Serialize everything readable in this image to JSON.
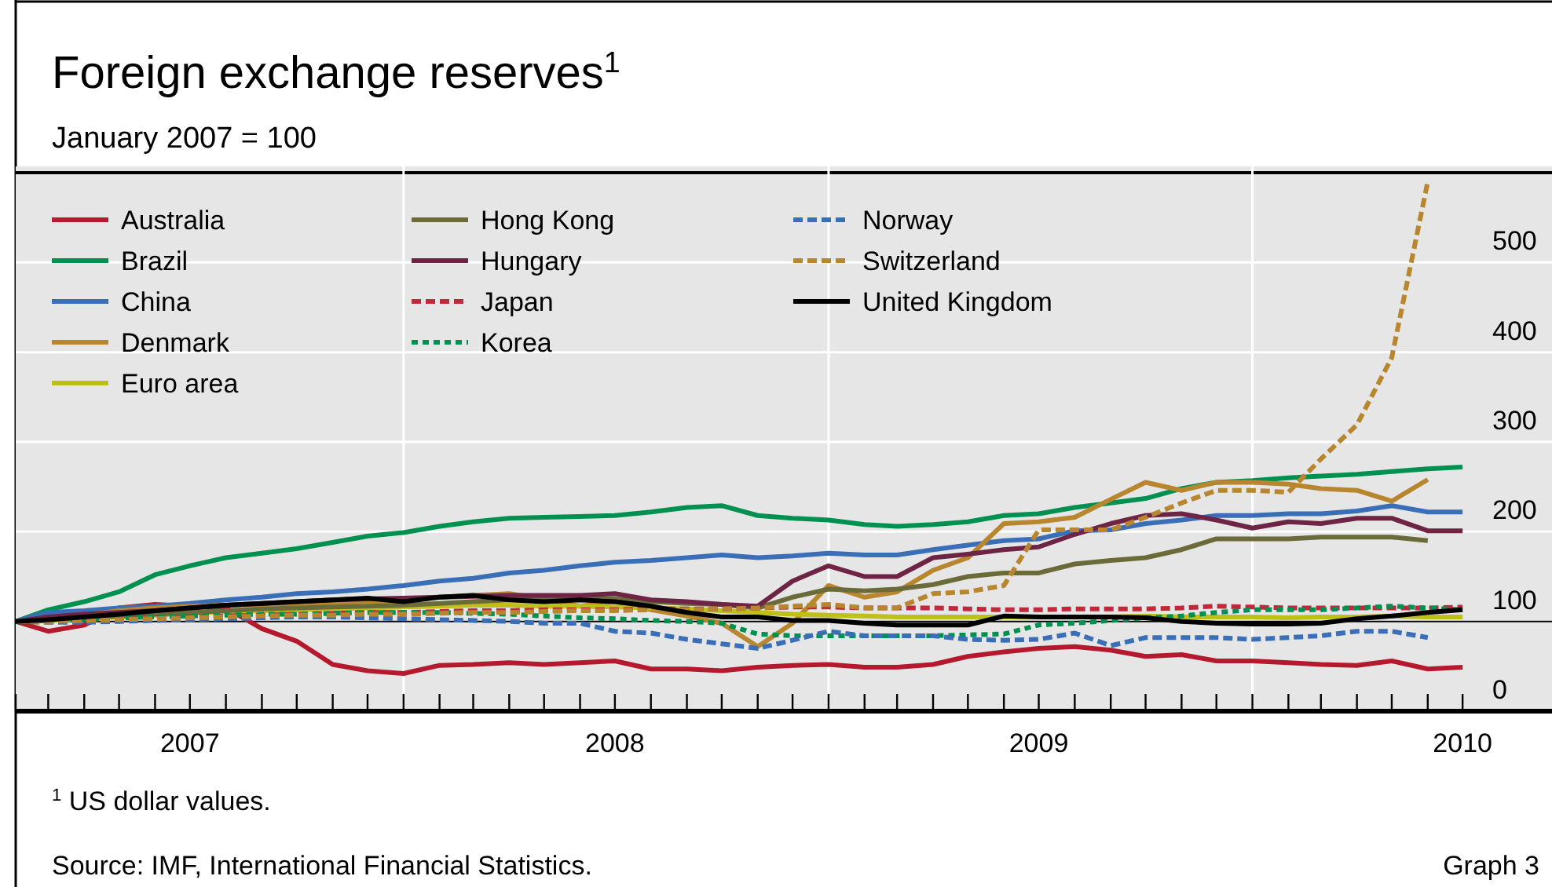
{
  "chart_data": {
    "type": "line",
    "title": "Foreign exchange reserves$^{1}$",
    "subtitle": "January 2007 = 100",
    "x": [
      "2007-01-31",
      "2007-02-28",
      "2007-03-31",
      "2007-04-30",
      "2007-05-31",
      "2007-06-30",
      "2007-07-31",
      "2007-08-31",
      "2007-09-30",
      "2007-10-31",
      "2007-11-30",
      "2007-12-31",
      "2008-01-31",
      "2008-02-29",
      "2008-03-31",
      "2008-04-30",
      "2008-05-31",
      "2008-06-30",
      "2008-07-31",
      "2008-08-31",
      "2008-09-30",
      "2008-10-31",
      "2008-11-30",
      "2008-12-31",
      "2009-01-31",
      "2009-02-28",
      "2009-03-31",
      "2009-04-30",
      "2009-05-31",
      "2009-06-30",
      "2009-07-31",
      "2009-08-31",
      "2009-09-30",
      "2009-10-31",
      "2009-11-30",
      "2009-12-31",
      "2010-01-31",
      "2010-02-28",
      "2010-03-31",
      "2010-04-30",
      "2010-05-31",
      "2010-06-30"
    ],
    "series": [
      {
        "name": "Australia",
        "color": "#b5192e",
        "line_style": "solid",
        "values": [
          100,
          89,
          96,
          115,
          119,
          117,
          115,
          92,
          78,
          52,
          45,
          42,
          51,
          52,
          54,
          52,
          54,
          56,
          47,
          47,
          45,
          49,
          51,
          52,
          49,
          49,
          52,
          61,
          66,
          70,
          72,
          68,
          61,
          63,
          56,
          56,
          54,
          52,
          51,
          56,
          47,
          49
        ]
      },
      {
        "name": "Brazil",
        "color": "#009150",
        "line_style": "solid",
        "values": [
          100,
          113,
          122,
          133,
          152,
          162,
          171,
          176,
          181,
          188,
          195,
          199,
          206,
          211,
          215,
          216,
          217,
          218,
          222,
          227,
          229,
          218,
          215,
          213,
          208,
          206,
          208,
          211,
          218,
          220,
          227,
          232,
          237,
          248,
          255,
          257,
          260,
          262,
          264,
          267,
          270,
          272
        ]
      },
      {
        "name": "China",
        "color": "#3a6fb7",
        "line_style": "solid",
        "values": [
          100,
          110,
          112,
          115,
          117,
          120,
          124,
          127,
          131,
          133,
          136,
          140,
          145,
          148,
          154,
          157,
          162,
          166,
          168,
          171,
          174,
          171,
          173,
          176,
          174,
          174,
          180,
          185,
          190,
          192,
          201,
          202,
          209,
          213,
          218,
          218,
          220,
          220,
          223,
          229,
          222,
          222
        ]
      },
      {
        "name": "Denmark",
        "color": "#b8862e",
        "line_style": "solid",
        "values": [
          100,
          103,
          107,
          112,
          115,
          117,
          118,
          119,
          120,
          121,
          122,
          123,
          127,
          129,
          131,
          125,
          117,
          122,
          113,
          106,
          98,
          72,
          98,
          140,
          127,
          133,
          157,
          171,
          209,
          211,
          216,
          236,
          255,
          246,
          255,
          255,
          253,
          248,
          246,
          234,
          258,
          null
        ]
      },
      {
        "name": "Euro area",
        "color": "#bfbf1a",
        "line_style": "solid",
        "values": [
          100,
          101,
          103,
          105,
          107,
          109,
          111,
          112,
          113,
          114,
          115,
          116,
          117,
          118,
          118,
          117,
          117,
          116,
          115,
          114,
          112,
          110,
          108,
          107,
          106,
          105,
          105,
          105,
          105,
          105,
          105,
          105,
          106,
          105,
          105,
          105,
          104,
          105,
          105,
          106,
          105,
          105
        ]
      },
      {
        "name": "Hong Kong",
        "color": "#6b6b3a",
        "line_style": "solid",
        "values": [
          100,
          102,
          104,
          106,
          108,
          110,
          112,
          114,
          115,
          116,
          117,
          118,
          120,
          122,
          124,
          126,
          127,
          125,
          122,
          120,
          119,
          115,
          127,
          136,
          134,
          136,
          141,
          150,
          154,
          154,
          164,
          168,
          171,
          180,
          192,
          192,
          192,
          194,
          194,
          194,
          190,
          null
        ]
      },
      {
        "name": "Hungary",
        "color": "#6e2445",
        "line_style": "solid",
        "values": [
          100,
          105,
          108,
          110,
          112,
          115,
          118,
          120,
          122,
          124,
          125,
          126,
          127,
          128,
          129,
          129,
          129,
          131,
          124,
          122,
          119,
          117,
          145,
          162,
          150,
          150,
          171,
          175,
          180,
          183,
          197,
          209,
          218,
          220,
          213,
          204,
          211,
          209,
          215,
          215,
          201,
          201
        ]
      },
      {
        "name": "Japan",
        "color": "#c0283c",
        "line_style": "dashed",
        "values": [
          100,
          101,
          102,
          103,
          104,
          105,
          106,
          107,
          108,
          109,
          110,
          110,
          111,
          112,
          112,
          113,
          113,
          113,
          114,
          114,
          114,
          115,
          116,
          116,
          115,
          115,
          115,
          114,
          113,
          113,
          114,
          114,
          114,
          115,
          117,
          116,
          115,
          115,
          115,
          115,
          115,
          116
        ]
      },
      {
        "name": "Korea",
        "color": "#009150",
        "line_style": "dotted",
        "values": [
          100,
          101,
          102,
          104,
          105,
          106,
          107,
          108,
          108,
          109,
          110,
          110,
          110,
          109,
          108,
          106,
          104,
          103,
          101,
          100,
          98,
          86,
          84,
          84,
          84,
          84,
          84,
          85,
          86,
          96,
          98,
          101,
          104,
          106,
          110,
          113,
          113,
          113,
          115,
          117,
          115,
          113
        ]
      },
      {
        "name": "Norway",
        "color": "#3a6fb7",
        "line_style": "dashed",
        "values": [
          100,
          99,
          99,
          100,
          101,
          102,
          103,
          104,
          105,
          105,
          104,
          103,
          102,
          101,
          100,
          98,
          98,
          89,
          87,
          80,
          75,
          70,
          79,
          89,
          84,
          84,
          84,
          80,
          79,
          80,
          87,
          73,
          82,
          82,
          82,
          80,
          82,
          84,
          89,
          89,
          82,
          null
        ]
      },
      {
        "name": "Switzerland",
        "color": "#b8862e",
        "line_style": "dashed",
        "values": [
          100,
          100,
          101,
          102,
          103,
          104,
          105,
          106,
          107,
          107,
          108,
          108,
          109,
          110,
          110,
          111,
          112,
          112,
          113,
          113,
          114,
          115,
          117,
          119,
          115,
          115,
          131,
          133,
          140,
          202,
          202,
          202,
          216,
          232,
          246,
          246,
          244,
          281,
          319,
          394,
          590,
          null
        ]
      },
      {
        "name": "United Kingdom",
        "color": "#000000",
        "line_style": "solid",
        "values": [
          100,
          102,
          105,
          108,
          112,
          115,
          118,
          120,
          122,
          124,
          126,
          122,
          127,
          129,
          124,
          122,
          124,
          122,
          117,
          110,
          105,
          105,
          101,
          101,
          98,
          96,
          96,
          96,
          106,
          105,
          105,
          105,
          104,
          100,
          98,
          97,
          97,
          98,
          103,
          106,
          110,
          113
        ]
      }
    ],
    "xlim": [
      "2007-01-31",
      "2010-09-15"
    ],
    "xticks": [
      {
        "value": "2007-01-31",
        "label": null
      },
      {
        "value": "2007-02-28",
        "label": null
      },
      {
        "value": "2007-03-31",
        "label": null
      },
      {
        "value": "2007-04-30",
        "label": null
      },
      {
        "value": "2007-05-31",
        "label": null
      },
      {
        "value": "2007-06-30",
        "label": "2007"
      },
      {
        "value": "2007-07-31",
        "label": null
      },
      {
        "value": "2007-08-31",
        "label": null
      },
      {
        "value": "2007-09-30",
        "label": null
      },
      {
        "value": "2007-10-31",
        "label": null
      },
      {
        "value": "2007-11-30",
        "label": null
      },
      {
        "value": "2007-12-31",
        "label": null
      },
      {
        "value": "2008-01-31",
        "label": null
      },
      {
        "value": "2008-02-29",
        "label": null
      },
      {
        "value": "2008-03-31",
        "label": null
      },
      {
        "value": "2008-04-30",
        "label": null
      },
      {
        "value": "2008-05-31",
        "label": null
      },
      {
        "value": "2008-06-30",
        "label": "2008"
      },
      {
        "value": "2008-07-31",
        "label": null
      },
      {
        "value": "2008-08-31",
        "label": null
      },
      {
        "value": "2008-09-30",
        "label": null
      },
      {
        "value": "2008-10-31",
        "label": null
      },
      {
        "value": "2008-11-30",
        "label": null
      },
      {
        "value": "2008-12-31",
        "label": null
      },
      {
        "value": "2009-01-31",
        "label": null
      },
      {
        "value": "2009-02-28",
        "label": null
      },
      {
        "value": "2009-03-31",
        "label": null
      },
      {
        "value": "2009-04-30",
        "label": null
      },
      {
        "value": "2009-05-31",
        "label": null
      },
      {
        "value": "2009-06-30",
        "label": "2009"
      },
      {
        "value": "2009-07-31",
        "label": null
      },
      {
        "value": "2009-08-31",
        "label": null
      },
      {
        "value": "2009-09-30",
        "label": null
      },
      {
        "value": "2009-10-31",
        "label": null
      },
      {
        "value": "2009-11-30",
        "label": null
      },
      {
        "value": "2009-12-31",
        "label": null
      },
      {
        "value": "2010-01-31",
        "label": null
      },
      {
        "value": "2010-02-28",
        "label": null
      },
      {
        "value": "2010-03-31",
        "label": null
      },
      {
        "value": "2010-04-30",
        "label": null
      },
      {
        "value": "2010-05-31",
        "label": null
      },
      {
        "value": "2010-06-30",
        "label": "2010"
      }
    ],
    "ylim": [
      0,
      600
    ],
    "yticks": [
      0,
      100,
      200,
      300,
      400,
      500
    ],
    "grid": true,
    "legend": "top left",
    "ref_lines": [
      {
        "axis": "y",
        "value": 100,
        "color": "#000000"
      }
    ],
    "annotations": [
      "$^{1}$  US dollar values.",
      "Source: IMF, International Financial Statistics.",
      "Graph 3"
    ]
  }
}
